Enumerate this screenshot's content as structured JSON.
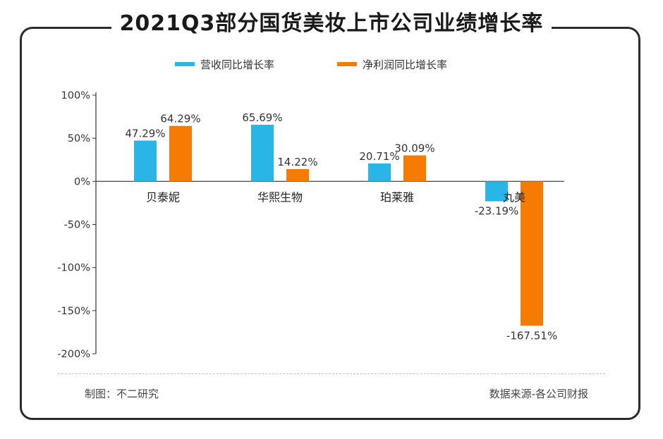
{
  "chart_data": {
    "type": "bar",
    "title": "2021Q3部分国货美妆上市公司业绩增长率",
    "categories": [
      "贝泰妮",
      "华熙生物",
      "珀莱雅",
      "丸美"
    ],
    "series": [
      {
        "name": "营收同比增长率",
        "color": "#29b6e6",
        "values": [
          47.29,
          65.69,
          20.71,
          -23.19
        ],
        "labels": [
          "47.29%",
          "65.69%",
          "20.71%",
          "-23.19%"
        ]
      },
      {
        "name": "净利润同比增长率",
        "color": "#f57c00",
        "values": [
          64.29,
          14.22,
          30.09,
          -167.51
        ],
        "labels": [
          "64.29%",
          "14.22%",
          "30.09%",
          "-167.51%"
        ]
      }
    ],
    "ylim": [
      -200,
      100
    ],
    "yticks": [
      100,
      50,
      0,
      -50,
      -100,
      -150,
      -200
    ],
    "ytick_labels": [
      "100%",
      "50%",
      "0%",
      "-50%",
      "-100%",
      "-150%",
      "-200%"
    ],
    "legend_position": "top",
    "grid": false
  },
  "footer": {
    "made_by": "制图：不二研究",
    "source": "数据来源-各公司财报"
  }
}
